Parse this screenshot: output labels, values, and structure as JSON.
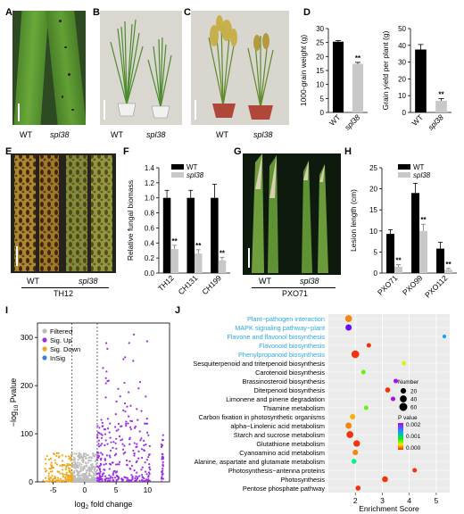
{
  "panel_labels": {
    "A": "A",
    "B": "B",
    "C": "C",
    "D": "D",
    "E": "E",
    "F": "F",
    "G": "G",
    "H": "H",
    "I": "I",
    "J": "J"
  },
  "photos": {
    "A": {
      "wt": "WT",
      "mut": "spl38"
    },
    "B": {
      "wt": "WT",
      "mut": "spl38"
    },
    "C": {
      "wt": "WT",
      "mut": "spl38"
    },
    "E": {
      "wt": "WT",
      "mut": "spl38",
      "strain": "TH12"
    },
    "G": {
      "wt": "WT",
      "mut": "spl38",
      "strain": "PXO71"
    }
  },
  "sig_mark": "**",
  "colors": {
    "wt": "#000000",
    "mut": "#c8c8c8",
    "up": "#9a2ee6",
    "down": "#f0a81c",
    "filtered": "#bdbdbd",
    "insig": "#3c7fd6",
    "highlight": "#2fa7e0"
  },
  "chart_data": [
    {
      "id": "D1",
      "type": "bar",
      "categories": [
        "WT",
        "spl38"
      ],
      "values": [
        25.3,
        17.4
      ],
      "errors": [
        0.4,
        0.5
      ],
      "ylabel": "1000-grain weight (g)",
      "ylim": [
        0,
        30
      ],
      "yticks": [
        "0",
        "5",
        "10",
        "15",
        "20",
        "25",
        "30"
      ],
      "sig": [
        false,
        true
      ]
    },
    {
      "id": "D2",
      "type": "bar",
      "categories": [
        "WT",
        "spl38"
      ],
      "values": [
        37.5,
        7
      ],
      "errors": [
        3,
        1.2
      ],
      "ylabel": "Grain yield per plant (g)",
      "ylim": [
        0,
        50
      ],
      "yticks": [
        "0",
        "10",
        "20",
        "30",
        "40",
        "50"
      ],
      "sig": [
        false,
        true
      ]
    },
    {
      "id": "F",
      "type": "bar",
      "categories": [
        "TH12",
        "CH131",
        "CH199"
      ],
      "series": [
        {
          "name": "WT",
          "values": [
            1.0,
            1.0,
            1.0
          ],
          "errors": [
            0.1,
            0.1,
            0.18
          ]
        },
        {
          "name": "spl38",
          "values": [
            0.32,
            0.26,
            0.17
          ],
          "errors": [
            0.05,
            0.05,
            0.04
          ]
        }
      ],
      "ylabel": "Relative fungal biomass",
      "ylim": [
        0,
        1.4
      ],
      "yticks": [
        "0.0",
        "0.2",
        "0.4",
        "0.6",
        "0.8",
        "1.0",
        "1.2",
        "1.4"
      ],
      "legend": "top-right"
    },
    {
      "id": "H",
      "type": "bar",
      "categories": [
        "PXO71",
        "PXO99",
        "PXO112"
      ],
      "series": [
        {
          "name": "WT",
          "values": [
            9.3,
            19,
            5.8
          ],
          "errors": [
            1,
            2.3,
            1.5
          ]
        },
        {
          "name": "spl38",
          "values": [
            1.5,
            10,
            0.8
          ],
          "errors": [
            0.5,
            1.6,
            0.3
          ]
        }
      ],
      "ylabel": "Lesion length (cm)",
      "ylim": [
        0,
        25
      ],
      "yticks": [
        "0",
        "5",
        "10",
        "15",
        "20",
        "25"
      ],
      "legend": "top-right"
    },
    {
      "id": "I",
      "type": "scatter",
      "xlabel_main": "log",
      "xlabel_sub": "2",
      "xlabel_rest": " fold change",
      "ylabel_main": "−log",
      "ylabel_sub": "10",
      "ylabel_rest": " Pvalue",
      "xlim": [
        -7.5,
        13.5
      ],
      "ylim": [
        0,
        330
      ],
      "xticks": [
        "-5",
        "0",
        "5",
        "10"
      ],
      "yticks": [
        "0",
        "100",
        "200",
        "300"
      ],
      "thresholds": [
        -2,
        2
      ],
      "legend": [
        "Filtered",
        "Sig. Up",
        "Sig. Down",
        "InSig"
      ],
      "legend_placement": "top-left"
    },
    {
      "id": "J",
      "type": "scatter",
      "pathways": [
        "Plant−pathogen interaction",
        "MAPK signaling pathway−plant",
        "Flavone and flavonol biosynthesis",
        "Flavonoid biosynthesis",
        "Phenylpropanoid biosynthesis",
        "Sesquiterpenoid and triterpenoid biosynthesis",
        "Carotenoid biosynthesis",
        "Brassinosteroid biosynthesis",
        "Diterpenoid biosynthesis",
        "Limonene and pinene degradation",
        "Thiamine metabolism",
        "Carbon fixation in photosynthetic organisms",
        "alpha−Linolenic acid metabolism",
        "Starch and sucrose metabolism",
        "Glutathione metabolism",
        "Cyanoamino acid metabolism",
        "Alanine, aspartate and glutamate metabolism",
        "Photosynthesis−antenna proteins",
        "Photosynthesis",
        "Pentose phosphate pathway"
      ],
      "highlighted": [
        true,
        true,
        true,
        true,
        true,
        false,
        false,
        false,
        false,
        false,
        false,
        false,
        false,
        false,
        false,
        false,
        false,
        false,
        false,
        false
      ],
      "enrichment": [
        1.75,
        1.75,
        5.3,
        2.5,
        2.0,
        3.8,
        2.3,
        3.5,
        3.2,
        3.4,
        2.4,
        1.9,
        1.75,
        1.8,
        2.05,
        2.0,
        1.95,
        4.2,
        3.1,
        2.1
      ],
      "number": [
        40,
        30,
        5,
        10,
        55,
        10,
        10,
        10,
        15,
        10,
        10,
        20,
        30,
        40,
        35,
        20,
        15,
        10,
        25,
        15
      ],
      "pvalue": [
        0.0002,
        0.0019,
        0.0015,
        0.0,
        0.0,
        0.0005,
        0.0008,
        0.002,
        0.0,
        0.002,
        0.0008,
        0.0003,
        0.0002,
        0.0,
        0.0,
        0.0002,
        0.0012,
        0.0,
        0.0,
        0.0
      ],
      "xlabel": "Enrichment Score",
      "xlim": [
        1,
        5.5
      ],
      "xticks": [
        "2",
        "3",
        "4",
        "5"
      ],
      "size_legend_title": "Number",
      "size_legend": [
        "20",
        "40",
        "60"
      ],
      "color_legend_title": "P value",
      "color_legend": [
        "0.002",
        "0.001",
        "0.000"
      ]
    }
  ]
}
